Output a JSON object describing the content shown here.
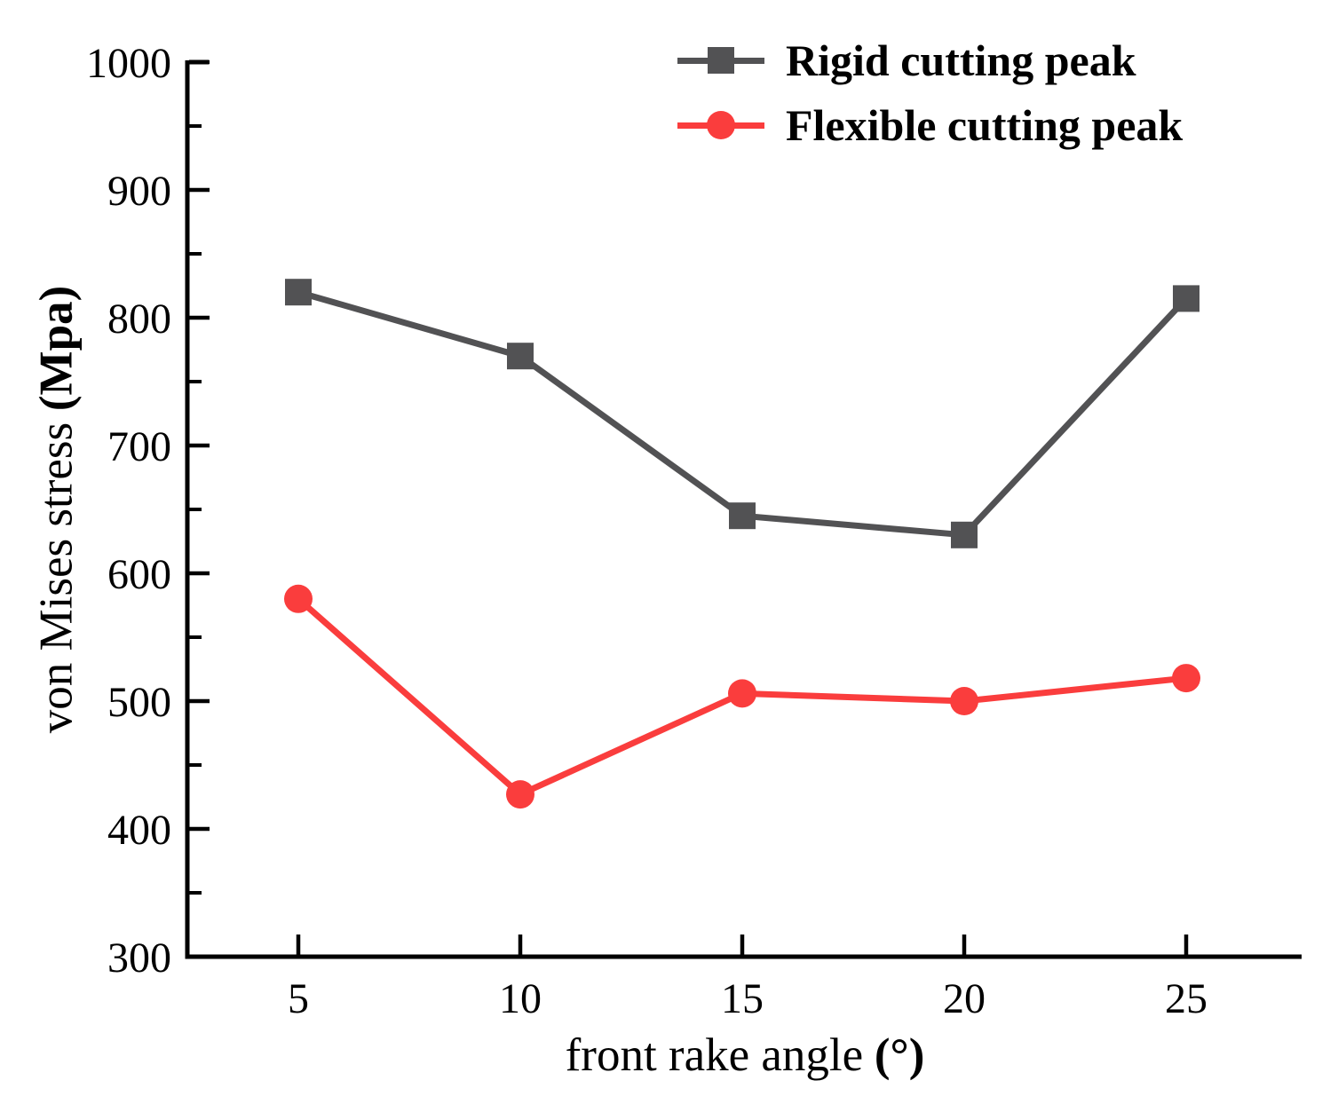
{
  "chart_data": {
    "type": "line",
    "title": "",
    "x": [
      5,
      10,
      15,
      20,
      25
    ],
    "series": [
      {
        "name": "Rigid cutting peak",
        "marker": "square",
        "color": "#525254",
        "values": [
          820,
          770,
          645,
          630,
          815
        ]
      },
      {
        "name": "Flexible cutting peak",
        "marker": "circle",
        "color": "#fa3d3d",
        "values": [
          580,
          427,
          506,
          500,
          518
        ]
      }
    ],
    "xlabel": "front rake angle",
    "xlabel_unit": "(°)",
    "ylabel": "von Mises stress",
    "ylabel_unit": "(Mpa)",
    "xlim": [
      2.5,
      27.6
    ],
    "ylim": [
      300,
      1000
    ],
    "x_ticks": [
      5,
      10,
      15,
      20,
      25
    ],
    "y_ticks_major": [
      300,
      400,
      500,
      600,
      700,
      800,
      900,
      1000
    ],
    "y_ticks_minor": [
      350,
      450,
      550,
      650,
      750,
      850,
      950
    ],
    "grid": false,
    "legend_position": "top-center-inside",
    "axis_color": "#000000",
    "text_color": "#000000"
  }
}
